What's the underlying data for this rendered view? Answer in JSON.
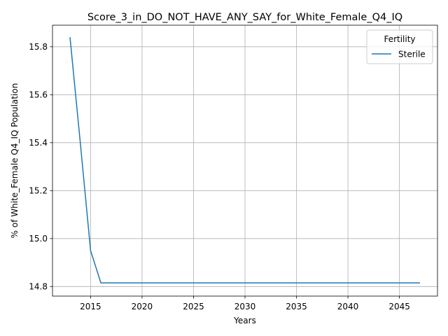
{
  "chart_data": {
    "type": "line",
    "title": "Score_3_in_DO_NOT_HAVE_ANY_SAY_for_White_Female_Q4_IQ",
    "xlabel": "Years",
    "ylabel": "% of White_Female Q4_IQ Population",
    "xlim": [
      2011.3,
      2048.7
    ],
    "ylim": [
      14.76,
      15.89
    ],
    "xticks": [
      2015,
      2020,
      2025,
      2030,
      2035,
      2040,
      2045
    ],
    "xtick_labels": [
      "2015",
      "2020",
      "2025",
      "2030",
      "2035",
      "2040",
      "2045"
    ],
    "yticks": [
      14.8,
      15.0,
      15.2,
      15.4,
      15.6,
      15.8
    ],
    "ytick_labels": [
      "14.8",
      "15.0",
      "15.2",
      "15.4",
      "15.6",
      "15.8"
    ],
    "grid": true,
    "legend": {
      "title": "Fertility",
      "placement": "top-right"
    },
    "series": [
      {
        "name": "Sterile",
        "color": "#1f77b4",
        "x": [
          2013,
          2014,
          2015,
          2016,
          2017,
          2018,
          2019,
          2020,
          2021,
          2022,
          2023,
          2024,
          2025,
          2026,
          2027,
          2028,
          2029,
          2030,
          2031,
          2032,
          2033,
          2034,
          2035,
          2036,
          2037,
          2038,
          2039,
          2040,
          2041,
          2042,
          2043,
          2044,
          2045,
          2046,
          2047
        ],
        "y": [
          15.84,
          15.4,
          14.95,
          14.815,
          14.815,
          14.815,
          14.815,
          14.815,
          14.815,
          14.815,
          14.815,
          14.815,
          14.815,
          14.815,
          14.815,
          14.815,
          14.815,
          14.815,
          14.815,
          14.815,
          14.815,
          14.815,
          14.815,
          14.815,
          14.815,
          14.815,
          14.815,
          14.815,
          14.815,
          14.815,
          14.815,
          14.815,
          14.815,
          14.815,
          14.815
        ]
      }
    ]
  }
}
